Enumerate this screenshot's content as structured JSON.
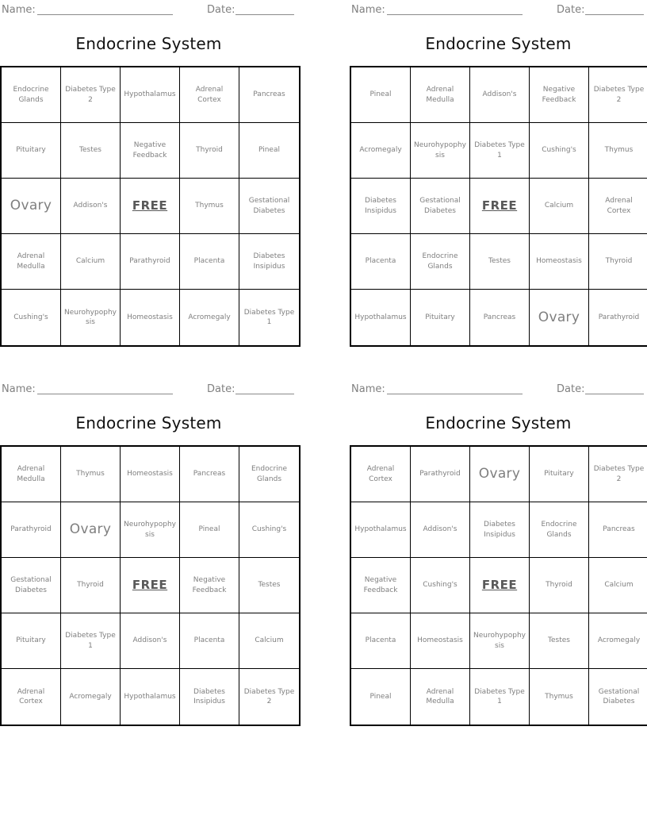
{
  "worksheet": {
    "title": "Endocrine System",
    "name_label": "Name:",
    "date_label": "Date:",
    "free_label": "FREE",
    "large_terms": [
      "Ovary"
    ]
  },
  "colors": {
    "cell_text": "#7f7f7f",
    "title_text": "#111111",
    "grid_border": "#000000",
    "free_text": "#595959",
    "header_text": "#808080"
  },
  "cards": [
    {
      "position": "top-left",
      "rows": [
        [
          "Endocrine Glands",
          "Diabetes Type 2",
          "Hypothalamus",
          "Adrenal Cortex",
          "Pancreas"
        ],
        [
          "Pituitary",
          "Testes",
          "Negative Feedback",
          "Thyroid",
          "Pineal"
        ],
        [
          "Ovary",
          "Addison's",
          "FREE",
          "Thymus",
          "Gestational Diabetes"
        ],
        [
          "Adrenal Medulla",
          "Calcium",
          "Parathyroid",
          "Placenta",
          "Diabetes Insipidus"
        ],
        [
          "Cushing's",
          "Neurohypophysis",
          "Homeostasis",
          "Acromegaly",
          "Diabetes Type 1"
        ]
      ]
    },
    {
      "position": "top-right",
      "rows": [
        [
          "Pineal",
          "Adrenal Medulla",
          "Addison's",
          "Negative Feedback",
          "Diabetes Type 2"
        ],
        [
          "Acromegaly",
          "Neurohypophysis",
          "Diabetes Type 1",
          "Cushing's",
          "Thymus"
        ],
        [
          "Diabetes Insipidus",
          "Gestational Diabetes",
          "FREE",
          "Calcium",
          "Adrenal Cortex"
        ],
        [
          "Placenta",
          "Endocrine Glands",
          "Testes",
          "Homeostasis",
          "Thyroid"
        ],
        [
          "Hypothalamus",
          "Pituitary",
          "Pancreas",
          "Ovary",
          "Parathyroid"
        ]
      ]
    },
    {
      "position": "bottom-left",
      "rows": [
        [
          "Adrenal Medulla",
          "Thymus",
          "Homeostasis",
          "Pancreas",
          "Endocrine Glands"
        ],
        [
          "Parathyroid",
          "Ovary",
          "Neurohypophysis",
          "Pineal",
          "Cushing's"
        ],
        [
          "Gestational Diabetes",
          "Thyroid",
          "FREE",
          "Negative Feedback",
          "Testes"
        ],
        [
          "Pituitary",
          "Diabetes Type 1",
          "Addison's",
          "Placenta",
          "Calcium"
        ],
        [
          "Adrenal Cortex",
          "Acromegaly",
          "Hypothalamus",
          "Diabetes Insipidus",
          "Diabetes Type 2"
        ]
      ]
    },
    {
      "position": "bottom-right",
      "rows": [
        [
          "Adrenal Cortex",
          "Parathyroid",
          "Ovary",
          "Pituitary",
          "Diabetes Type 2"
        ],
        [
          "Hypothalamus",
          "Addison's",
          "Diabetes Insipidus",
          "Endocrine Glands",
          "Pancreas"
        ],
        [
          "Negative Feedback",
          "Cushing's",
          "FREE",
          "Thyroid",
          "Calcium"
        ],
        [
          "Placenta",
          "Homeostasis",
          "Neurohypophysis",
          "Testes",
          "Acromegaly"
        ],
        [
          "Pineal",
          "Adrenal Medulla",
          "Diabetes Type 1",
          "Thymus",
          "Gestational Diabetes"
        ]
      ]
    }
  ]
}
